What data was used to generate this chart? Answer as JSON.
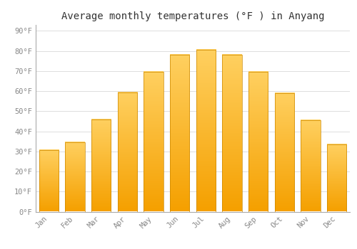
{
  "title": "Average monthly temperatures (°F ) in Anyang",
  "months": [
    "Jan",
    "Feb",
    "Mar",
    "Apr",
    "May",
    "Jun",
    "Jul",
    "Aug",
    "Sep",
    "Oct",
    "Nov",
    "Dec"
  ],
  "values": [
    30.5,
    34.5,
    46.0,
    59.5,
    69.5,
    78.0,
    80.5,
    78.0,
    69.5,
    59.0,
    45.5,
    33.5
  ],
  "bar_color_top": "#FFD060",
  "bar_color_bottom": "#F5A000",
  "bar_edge_color": "#CC8800",
  "background_color": "#ffffff",
  "plot_bg_color": "#ffffff",
  "grid_color": "#dddddd",
  "ytick_labels": [
    "0°F",
    "10°F",
    "20°F",
    "30°F",
    "40°F",
    "50°F",
    "60°F",
    "70°F",
    "80°F",
    "90°F"
  ],
  "ytick_values": [
    0,
    10,
    20,
    30,
    40,
    50,
    60,
    70,
    80,
    90
  ],
  "ylim": [
    0,
    93
  ],
  "title_fontsize": 10,
  "tick_fontsize": 7.5,
  "bar_width": 0.75,
  "tick_color": "#888888",
  "spine_color": "#aaaaaa"
}
